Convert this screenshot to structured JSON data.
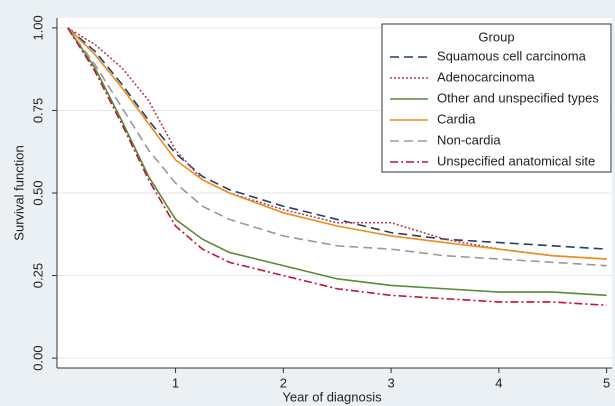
{
  "chart_data": {
    "type": "line",
    "xlabel": "Year of diagnosis",
    "ylabel": "Survival function",
    "legend_title": "Group",
    "legend_position": "upper right",
    "grid": true,
    "x": [
      0,
      0.25,
      0.5,
      0.75,
      1,
      1.25,
      1.5,
      2,
      2.5,
      3,
      3.5,
      4,
      4.5,
      5
    ],
    "xlim": [
      -0.1,
      5.05
    ],
    "ylim": [
      -0.03,
      1.03
    ],
    "xticks": [
      1,
      2,
      3,
      4,
      5
    ],
    "yticks": [
      {
        "value": 0,
        "label": "0.00"
      },
      {
        "value": 0.25,
        "label": "0.25"
      },
      {
        "value": 0.5,
        "label": "0.50"
      },
      {
        "value": 0.75,
        "label": "0.75"
      },
      {
        "value": 1,
        "label": "1.00"
      }
    ],
    "series": [
      {
        "name": "Squamous cell carcinoma",
        "color": "#1f3f6e",
        "dash": "long-dash",
        "values": [
          1,
          0.93,
          0.83,
          0.72,
          0.62,
          0.55,
          0.51,
          0.46,
          0.42,
          0.38,
          0.36,
          0.35,
          0.34,
          0.33
        ]
      },
      {
        "name": "Adenocarcinoma",
        "color": "#b0405a",
        "dash": "dot",
        "values": [
          1,
          0.95,
          0.88,
          0.78,
          0.63,
          0.54,
          0.5,
          0.45,
          0.41,
          0.41,
          0.36,
          0.33,
          0.31,
          0.3
        ]
      },
      {
        "name": "Other and unspecified types",
        "color": "#5a8a3a",
        "dash": "solid",
        "values": [
          1,
          0.88,
          0.72,
          0.55,
          0.42,
          0.36,
          0.32,
          0.28,
          0.24,
          0.22,
          0.21,
          0.2,
          0.2,
          0.19
        ]
      },
      {
        "name": "Cardia",
        "color": "#f08c1a",
        "dash": "solid",
        "values": [
          1,
          0.92,
          0.82,
          0.71,
          0.6,
          0.54,
          0.5,
          0.44,
          0.4,
          0.37,
          0.35,
          0.33,
          0.31,
          0.3
        ]
      },
      {
        "name": "Non-cardia",
        "color": "#9a9a9a",
        "dash": "long-dash",
        "values": [
          1,
          0.89,
          0.76,
          0.63,
          0.53,
          0.46,
          0.42,
          0.37,
          0.34,
          0.33,
          0.31,
          0.3,
          0.29,
          0.28
        ]
      },
      {
        "name": "Unspecified anatomical site",
        "color": "#c0143c",
        "dash": "dash-dot",
        "values": [
          1,
          0.87,
          0.71,
          0.54,
          0.4,
          0.33,
          0.29,
          0.25,
          0.21,
          0.19,
          0.18,
          0.17,
          0.17,
          0.16
        ]
      }
    ]
  }
}
